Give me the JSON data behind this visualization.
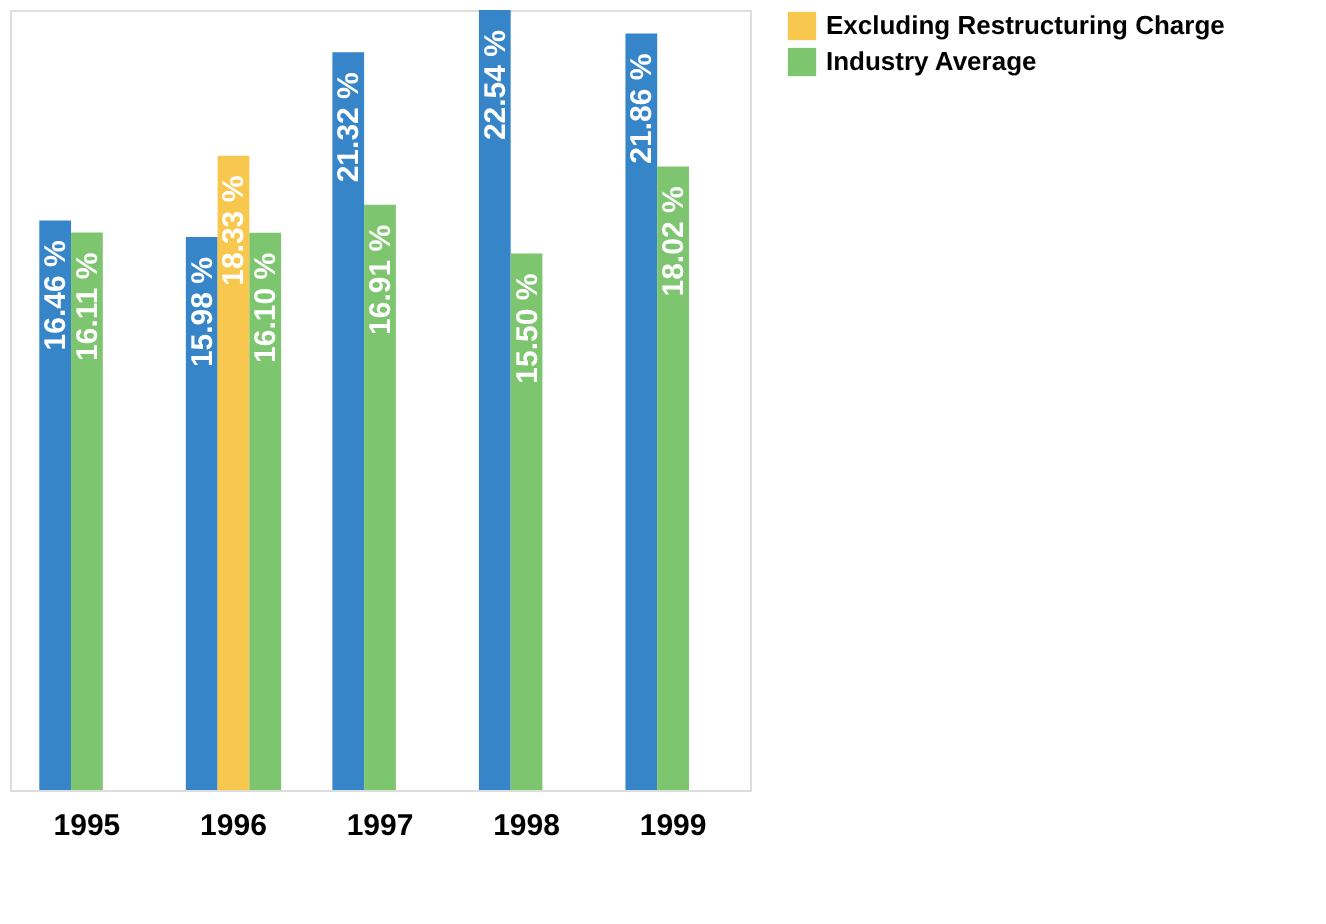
{
  "chart_data": {
    "type": "bar",
    "categories": [
      "1995",
      "1996",
      "1997",
      "1998",
      "1999"
    ],
    "series": [
      {
        "color": "#3585c8",
        "values": [
          16.46,
          15.98,
          21.32,
          22.54,
          21.86
        ],
        "value_labels": [
          "16.46 %",
          "15.98 %",
          "21.32 %",
          "22.54 %",
          "21.86 %"
        ]
      },
      {
        "name": "Excluding Restructuring Charge",
        "color": "#f8c84e",
        "values": [
          null,
          18.33,
          null,
          null,
          null
        ],
        "value_labels": [
          null,
          "18.33 %",
          null,
          null,
          null
        ]
      },
      {
        "name": "Industry Average",
        "color": "#7dc56e",
        "values": [
          16.11,
          16.1,
          16.91,
          15.5,
          18.02
        ],
        "value_labels": [
          "16.11 %",
          "16.10 %",
          "16.91 %",
          "15.50 %",
          "18.02 %"
        ]
      }
    ],
    "legend": "right"
  }
}
